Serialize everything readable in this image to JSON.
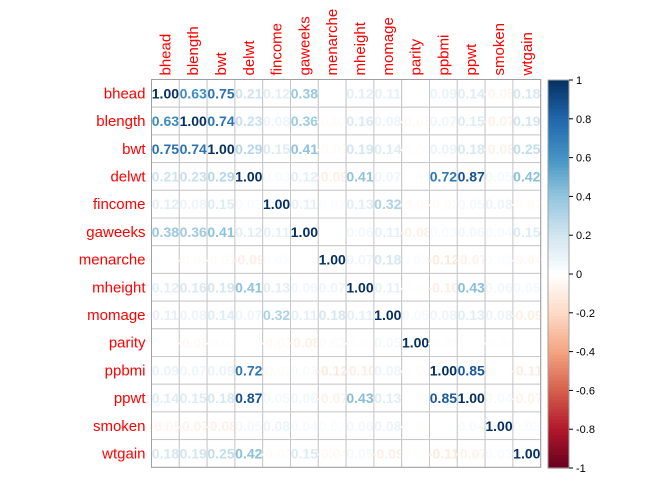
{
  "chart_data": {
    "type": "heatmap",
    "title": "",
    "variables": [
      "bhead",
      "blength",
      "bwt",
      "delwt",
      "fincome",
      "gaweeks",
      "menarche",
      "mheight",
      "momage",
      "parity",
      "ppbmi",
      "ppwt",
      "smoken",
      "wtgain"
    ],
    "matrix": [
      [
        1.0,
        0.63,
        0.75,
        0.21,
        0.12,
        0.38,
        0.0,
        0.12,
        0.11,
        0.0,
        0.09,
        0.14,
        -0.05,
        0.18
      ],
      [
        0.63,
        1.0,
        0.74,
        0.23,
        0.08,
        0.36,
        -0.02,
        0.16,
        0.08,
        -0.03,
        0.07,
        0.15,
        -0.07,
        0.19
      ],
      [
        0.75,
        0.74,
        1.0,
        0.29,
        0.15,
        0.41,
        -0.02,
        0.19,
        0.14,
        -0.01,
        0.09,
        0.18,
        -0.08,
        0.25
      ],
      [
        0.21,
        0.23,
        0.29,
        1.0,
        0.03,
        0.12,
        -0.09,
        0.41,
        0.07,
        0.0,
        0.72,
        0.87,
        0.05,
        0.42
      ],
      [
        0.12,
        0.08,
        0.15,
        0.03,
        1.0,
        0.11,
        0.02,
        0.13,
        0.32,
        -0.03,
        -0.02,
        0.05,
        0.08,
        -0.02
      ],
      [
        0.38,
        0.36,
        0.41,
        0.12,
        0.11,
        1.0,
        0.0,
        0.06,
        0.11,
        -0.08,
        0.03,
        0.06,
        0.04,
        0.15
      ],
      [
        0.0,
        -0.02,
        -0.02,
        -0.09,
        0.02,
        0.0,
        1.0,
        0.07,
        0.18,
        0.02,
        -0.12,
        -0.07,
        0.02,
        -0.04
      ],
      [
        0.12,
        0.16,
        0.19,
        0.41,
        0.13,
        0.06,
        0.07,
        1.0,
        0.11,
        -0.01,
        -0.1,
        0.43,
        0.06,
        0.05
      ],
      [
        0.11,
        0.08,
        0.14,
        0.07,
        0.32,
        0.11,
        0.18,
        0.11,
        1.0,
        0.05,
        0.08,
        0.13,
        0.08,
        -0.09
      ],
      [
        0.0,
        -0.03,
        -0.01,
        0.0,
        -0.03,
        -0.08,
        0.02,
        -0.01,
        0.05,
        1.0,
        -0.01,
        0.0,
        -0.01,
        0.01
      ],
      [
        0.09,
        0.07,
        0.09,
        0.72,
        -0.02,
        0.03,
        -0.12,
        -0.1,
        0.08,
        -0.01,
        1.0,
        0.85,
        0.01,
        -0.11
      ],
      [
        0.14,
        0.15,
        0.18,
        0.87,
        0.05,
        0.06,
        -0.07,
        0.43,
        0.13,
        0.0,
        0.85,
        1.0,
        0.04,
        -0.07
      ],
      [
        -0.05,
        -0.07,
        -0.08,
        0.05,
        0.08,
        0.04,
        0.02,
        0.06,
        0.08,
        -0.01,
        0.01,
        0.04,
        1.0,
        0.03
      ],
      [
        0.18,
        0.19,
        0.25,
        0.42,
        -0.02,
        0.15,
        -0.04,
        0.05,
        -0.09,
        0.01,
        -0.11,
        -0.07,
        0.03,
        1.0
      ]
    ],
    "colorbar": {
      "ticks": [
        "1",
        "0.8",
        "0.6",
        "0.4",
        "0.2",
        "0",
        "-0.2",
        "-0.4",
        "-0.6",
        "-0.8",
        "-1"
      ],
      "range": [
        -1,
        1
      ],
      "low_color": "#67001f",
      "mid_color": "#ffffff",
      "high_color": "#053061"
    }
  }
}
